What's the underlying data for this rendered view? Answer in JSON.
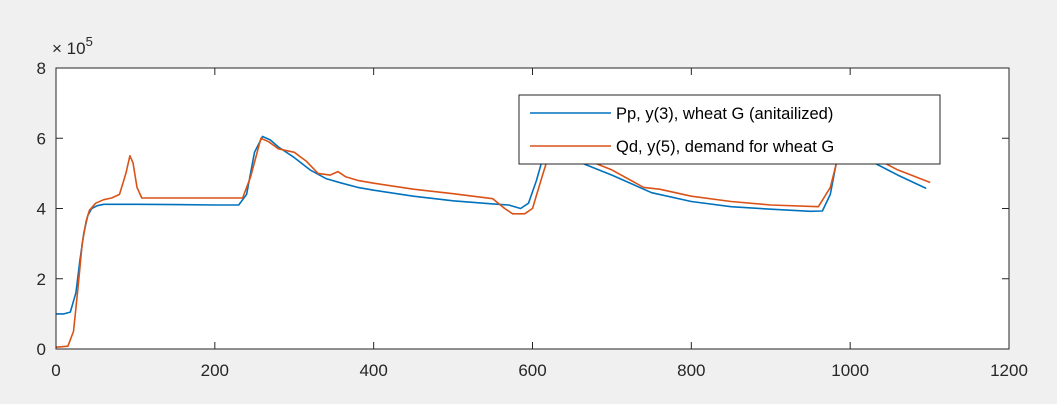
{
  "chart_data": {
    "type": "line",
    "background": "#f0f0f0",
    "plot_background": "#ffffff",
    "exponent_label": {
      "base": "× 10",
      "power": "5"
    },
    "xlim": [
      0,
      1200
    ],
    "ylim": [
      0,
      8
    ],
    "x_ticks": [
      0,
      200,
      400,
      600,
      800,
      1000,
      1200
    ],
    "x_tick_labels": [
      "0",
      "200",
      "400",
      "600",
      "800",
      "1000",
      "1200"
    ],
    "y_ticks": [
      0,
      2,
      4,
      6,
      8
    ],
    "y_tick_labels": [
      "0",
      "2",
      "4",
      "6",
      "8"
    ],
    "grid": false,
    "legend_placement": "top-right",
    "series": [
      {
        "name": "Pp, y(3), wheat G (anitailized)",
        "color": "#0072bd",
        "points": [
          [
            0,
            1.0
          ],
          [
            10,
            1.0
          ],
          [
            18,
            1.05
          ],
          [
            25,
            1.6
          ],
          [
            30,
            2.5
          ],
          [
            35,
            3.3
          ],
          [
            40,
            3.8
          ],
          [
            45,
            4.0
          ],
          [
            52,
            4.08
          ],
          [
            60,
            4.12
          ],
          [
            100,
            4.12
          ],
          [
            150,
            4.11
          ],
          [
            200,
            4.1
          ],
          [
            230,
            4.1
          ],
          [
            240,
            4.4
          ],
          [
            250,
            5.6
          ],
          [
            260,
            6.05
          ],
          [
            270,
            5.95
          ],
          [
            280,
            5.75
          ],
          [
            300,
            5.45
          ],
          [
            320,
            5.1
          ],
          [
            340,
            4.85
          ],
          [
            360,
            4.72
          ],
          [
            380,
            4.6
          ],
          [
            400,
            4.52
          ],
          [
            450,
            4.35
          ],
          [
            500,
            4.22
          ],
          [
            550,
            4.13
          ],
          [
            570,
            4.1
          ],
          [
            585,
            4.0
          ],
          [
            595,
            4.15
          ],
          [
            605,
            4.8
          ],
          [
            615,
            5.6
          ],
          [
            625,
            5.75
          ],
          [
            650,
            5.4
          ],
          [
            700,
            4.95
          ],
          [
            750,
            4.45
          ],
          [
            800,
            4.2
          ],
          [
            850,
            4.05
          ],
          [
            900,
            3.98
          ],
          [
            950,
            3.92
          ],
          [
            965,
            3.93
          ],
          [
            975,
            4.4
          ],
          [
            985,
            5.6
          ],
          [
            1000,
            5.75
          ],
          [
            1030,
            5.3
          ],
          [
            1060,
            4.95
          ],
          [
            1095,
            4.58
          ]
        ]
      },
      {
        "name": "Qd, y(5), demand for wheat G",
        "color": "#d95319",
        "points": [
          [
            0,
            0.05
          ],
          [
            15,
            0.08
          ],
          [
            22,
            0.5
          ],
          [
            28,
            1.8
          ],
          [
            33,
            3.0
          ],
          [
            38,
            3.65
          ],
          [
            42,
            3.95
          ],
          [
            50,
            4.15
          ],
          [
            60,
            4.25
          ],
          [
            70,
            4.3
          ],
          [
            80,
            4.4
          ],
          [
            88,
            5.0
          ],
          [
            93,
            5.5
          ],
          [
            97,
            5.3
          ],
          [
            102,
            4.6
          ],
          [
            108,
            4.3
          ],
          [
            130,
            4.3
          ],
          [
            200,
            4.3
          ],
          [
            235,
            4.3
          ],
          [
            245,
            4.9
          ],
          [
            258,
            6.0
          ],
          [
            268,
            5.9
          ],
          [
            280,
            5.7
          ],
          [
            300,
            5.6
          ],
          [
            315,
            5.35
          ],
          [
            330,
            5.0
          ],
          [
            345,
            4.95
          ],
          [
            355,
            5.05
          ],
          [
            365,
            4.9
          ],
          [
            380,
            4.8
          ],
          [
            400,
            4.72
          ],
          [
            450,
            4.55
          ],
          [
            500,
            4.42
          ],
          [
            550,
            4.28
          ],
          [
            565,
            4.0
          ],
          [
            575,
            3.85
          ],
          [
            590,
            3.85
          ],
          [
            600,
            4.0
          ],
          [
            612,
            4.9
          ],
          [
            625,
            5.85
          ],
          [
            650,
            5.55
          ],
          [
            700,
            5.1
          ],
          [
            740,
            4.6
          ],
          [
            760,
            4.55
          ],
          [
            800,
            4.35
          ],
          [
            850,
            4.2
          ],
          [
            900,
            4.1
          ],
          [
            960,
            4.05
          ],
          [
            975,
            4.6
          ],
          [
            985,
            5.5
          ],
          [
            1000,
            5.8
          ],
          [
            1030,
            5.45
          ],
          [
            1060,
            5.1
          ],
          [
            1100,
            4.75
          ]
        ]
      }
    ]
  }
}
